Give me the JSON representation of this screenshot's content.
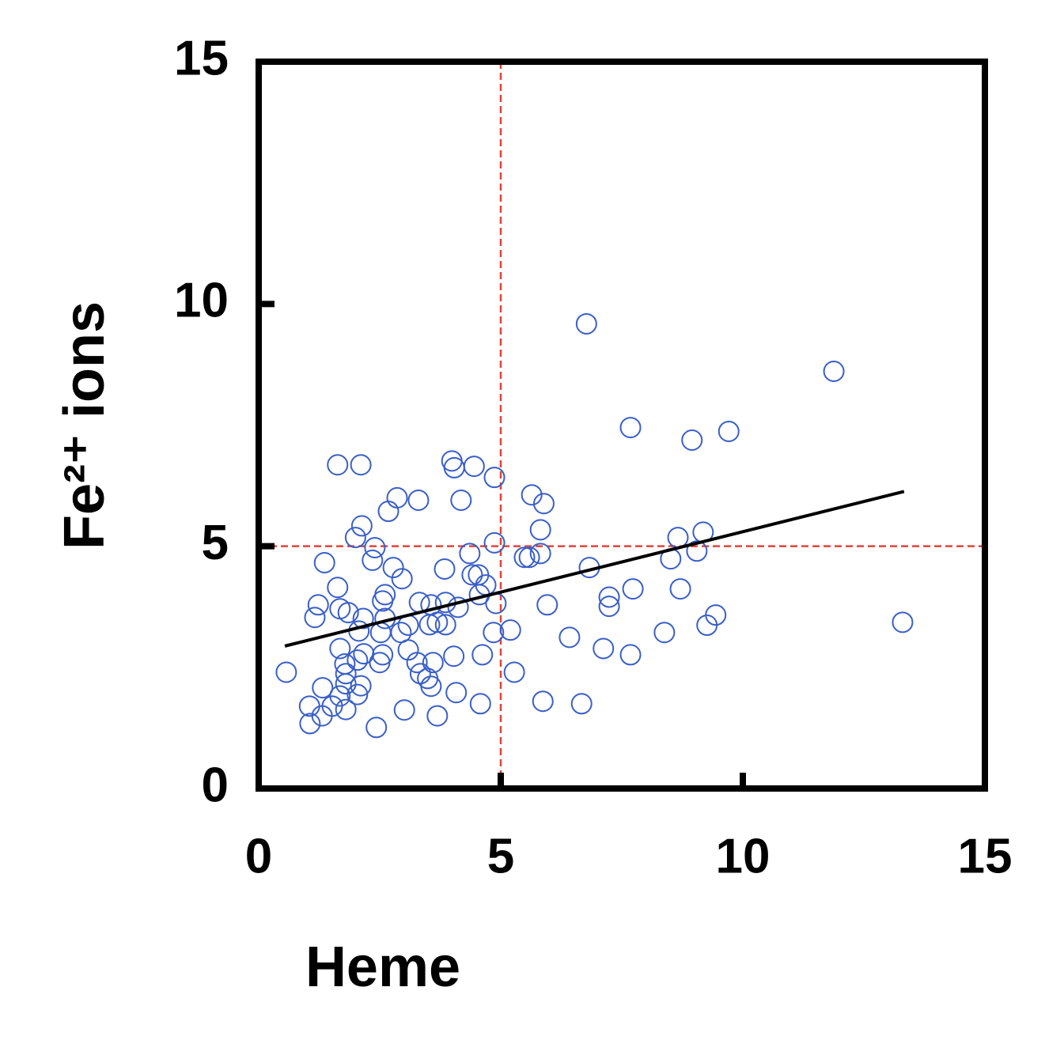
{
  "chart_data": {
    "type": "scatter",
    "xlabel": "Heme",
    "ylabel": "Fe²⁺ ions",
    "xlim": [
      0,
      15
    ],
    "ylim": [
      0,
      15
    ],
    "xticks": [
      0,
      5,
      10,
      15
    ],
    "yticks": [
      0,
      5,
      10,
      15
    ],
    "color": "#3a5fc8",
    "x": [
      6.77,
      11.88,
      7.68,
      8.95,
      9.71,
      13.3,
      1.63,
      2.11,
      3.99,
      4.04,
      4.45,
      4.87,
      2.86,
      3.3,
      2.68,
      4.18,
      5.64,
      5.89,
      2.13,
      5.82,
      2.0,
      2.4,
      4.87,
      5.49,
      5.59,
      5.82,
      8.66,
      9.18,
      9.05,
      8.51,
      1.36,
      2.35,
      2.78,
      4.36,
      3.84,
      4.41,
      4.54,
      6.83,
      2.96,
      1.63,
      4.69,
      2.61,
      2.56,
      7.73,
      8.71,
      7.24,
      7.24,
      5.96,
      4.9,
      1.23,
      3.32,
      3.56,
      3.86,
      4.12,
      4.56,
      1.68,
      1.85,
      1.16,
      2.16,
      2.61,
      9.44,
      9.26,
      3.69,
      3.53,
      3.86,
      3.09,
      2.94,
      2.52,
      2.07,
      5.2,
      4.85,
      6.42,
      8.38,
      7.12,
      7.68,
      1.68,
      2.17,
      2.56,
      3.09,
      4.03,
      4.62,
      1.78,
      2.04,
      2.5,
      3.27,
      3.6,
      0.57,
      1.8,
      3.34,
      3.49,
      5.28,
      1.8,
      2.11,
      3.56,
      1.32,
      1.68,
      2.04,
      4.08,
      5.87,
      6.67,
      4.58,
      1.05,
      1.52,
      1.8,
      3.01,
      3.69,
      1.31,
      1.06,
      2.43
    ],
    "y": [
      9.59,
      8.61,
      7.45,
      7.19,
      7.37,
      3.43,
      6.68,
      6.68,
      6.76,
      6.62,
      6.65,
      6.42,
      6.0,
      5.95,
      5.72,
      5.95,
      6.06,
      5.88,
      5.42,
      5.34,
      5.18,
      4.97,
      5.07,
      4.77,
      4.77,
      4.85,
      5.18,
      5.29,
      4.9,
      4.74,
      4.66,
      4.71,
      4.56,
      4.85,
      4.53,
      4.41,
      4.41,
      4.56,
      4.33,
      4.15,
      4.2,
      4.0,
      3.87,
      4.12,
      4.12,
      3.95,
      3.76,
      3.79,
      3.82,
      3.79,
      3.84,
      3.79,
      3.84,
      3.74,
      4.0,
      3.71,
      3.63,
      3.53,
      3.51,
      3.51,
      3.58,
      3.37,
      3.43,
      3.38,
      3.38,
      3.37,
      3.22,
      3.22,
      3.25,
      3.27,
      3.22,
      3.12,
      3.22,
      2.89,
      2.76,
      2.89,
      2.78,
      2.76,
      2.86,
      2.73,
      2.76,
      2.57,
      2.65,
      2.6,
      2.6,
      2.6,
      2.4,
      2.37,
      2.37,
      2.27,
      2.4,
      2.16,
      2.12,
      2.11,
      2.08,
      1.91,
      1.94,
      1.98,
      1.8,
      1.75,
      1.75,
      1.7,
      1.7,
      1.63,
      1.62,
      1.5,
      1.5,
      1.34,
      1.26
    ],
    "fit_line": {
      "x": [
        0.54,
        13.33
      ],
      "y": [
        2.94,
        6.13
      ],
      "color": "#000000"
    },
    "reference_lines": [
      {
        "x": 5,
        "color": "#e0443a"
      },
      {
        "y": 5,
        "color": "#e0443a"
      }
    ]
  }
}
